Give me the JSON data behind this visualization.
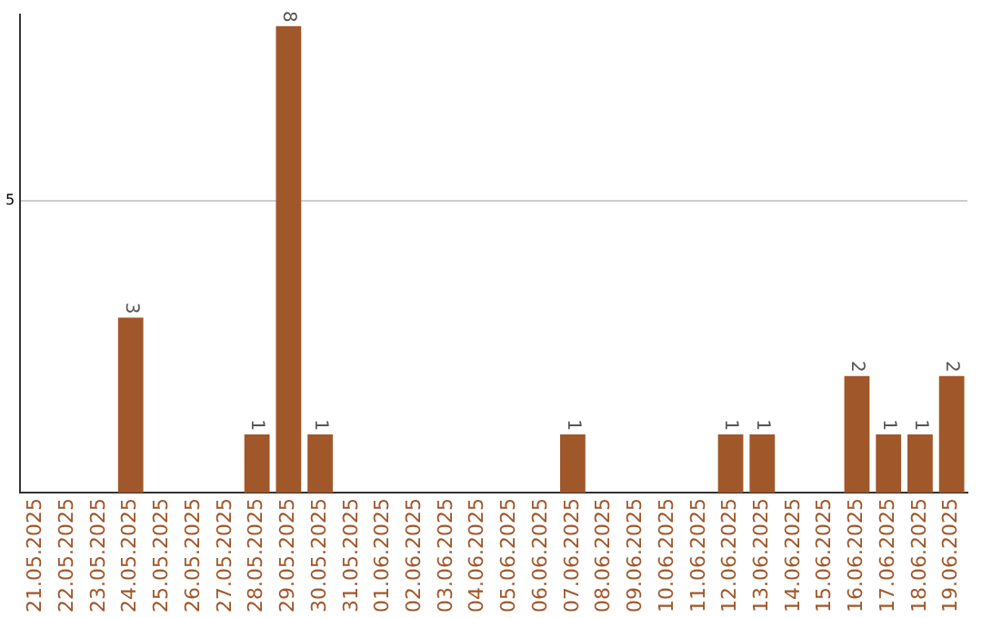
{
  "chart_data": {
    "type": "bar",
    "categories": [
      "21.05.2025",
      "22.05.2025",
      "23.05.2025",
      "24.05.2025",
      "25.05.2025",
      "26.05.2025",
      "27.05.2025",
      "28.05.2025",
      "29.05.2025",
      "30.05.2025",
      "31.05.2025",
      "01.06.2025",
      "02.06.2025",
      "03.06.2025",
      "04.06.2025",
      "05.06.2025",
      "06.06.2025",
      "07.06.2025",
      "08.06.2025",
      "09.06.2025",
      "10.06.2025",
      "11.06.2025",
      "12.06.2025",
      "13.06.2025",
      "14.06.2025",
      "15.06.2025",
      "16.06.2025",
      "17.06.2025",
      "18.06.2025",
      "19.06.2025"
    ],
    "values": [
      0,
      0,
      0,
      3,
      0,
      0,
      0,
      1,
      8,
      1,
      0,
      0,
      0,
      0,
      0,
      0,
      0,
      1,
      0,
      0,
      0,
      0,
      1,
      1,
      0,
      0,
      2,
      1,
      1,
      2
    ],
    "value_labels": [
      null,
      null,
      null,
      "3",
      null,
      null,
      null,
      "1",
      "8",
      "1",
      null,
      null,
      null,
      null,
      null,
      null,
      null,
      "1",
      null,
      null,
      null,
      null,
      "1",
      "1",
      null,
      null,
      "2",
      "1",
      "1",
      "2"
    ],
    "color": "#a0572a",
    "ylim": [
      0,
      8.2
    ],
    "yticks": [
      5
    ],
    "grid": "y"
  }
}
